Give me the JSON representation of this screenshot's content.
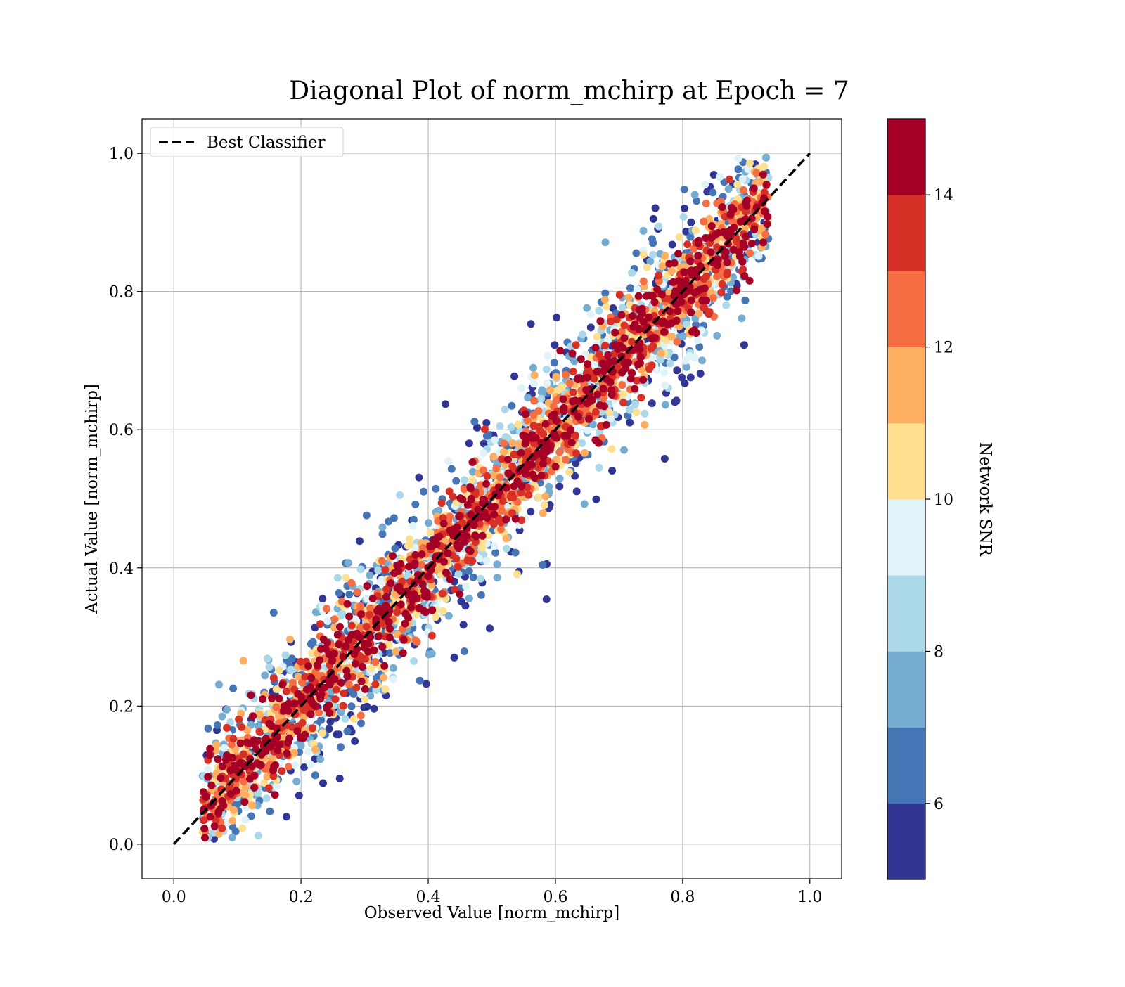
{
  "chart_data": {
    "type": "scatter",
    "title": "Diagonal Plot of norm_mchirp at Epoch = 7",
    "xlabel": "Observed Value [norm_mchirp]",
    "ylabel": "Actual Value [norm_mchirp]",
    "xlim": [
      -0.05,
      1.05
    ],
    "ylim": [
      -0.05,
      1.05
    ],
    "xticks": [
      "0.0",
      "0.2",
      "0.4",
      "0.6",
      "0.8",
      "1.0"
    ],
    "yticks": [
      "0.0",
      "0.2",
      "0.4",
      "0.6",
      "0.8",
      "1.0"
    ],
    "grid": true,
    "legend": {
      "position": "top-left",
      "entries": [
        "Best Classifier"
      ]
    },
    "reference_line": {
      "name": "Best Classifier",
      "style": "dashed",
      "color": "#000000",
      "x": [
        0.0,
        1.0
      ],
      "y": [
        0.0,
        1.0
      ]
    },
    "scatter_description": {
      "x_range": [
        0.05,
        0.93
      ],
      "y_range": [
        0.0,
        1.0
      ],
      "color_encoding": "Network SNR",
      "high_snr_near_diagonal": true
    },
    "colorbar": {
      "label": "Network SNR",
      "range": [
        5,
        15
      ],
      "ticks": [
        "6",
        "8",
        "10",
        "12",
        "14"
      ],
      "colors": [
        "#313695",
        "#4575b4",
        "#74add1",
        "#abd9e9",
        "#e0f3f8",
        "#fee090",
        "#fdae61",
        "#f46d43",
        "#d73027",
        "#a50026"
      ]
    }
  }
}
